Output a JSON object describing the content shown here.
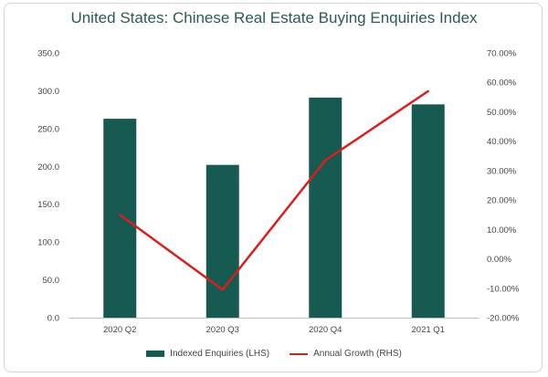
{
  "chart_data": {
    "type": "bar",
    "title": "United States: Chinese Real Estate Buying Enquiries Index",
    "categories": [
      "2020 Q2",
      "2020 Q3",
      "2020 Q4",
      "2021 Q1"
    ],
    "series": [
      {
        "name": "Indexed Enquiries (LHS)",
        "type": "bar",
        "axis": "left",
        "values": [
          263,
          202,
          291,
          282
        ]
      },
      {
        "name": "Annual Growth (RHS)",
        "type": "line",
        "axis": "right",
        "values": [
          0.15,
          -0.105,
          0.335,
          0.57
        ]
      }
    ],
    "left_axis": {
      "ylim": [
        0,
        350
      ],
      "ticks": [
        "0.0",
        "50.0",
        "100.0",
        "150.0",
        "200.0",
        "250.0",
        "300.0",
        "350.0"
      ]
    },
    "right_axis": {
      "ylim": [
        -0.2,
        0.7
      ],
      "ticks": [
        "-20.00%",
        "-10.00%",
        "0.00%",
        "10.00%",
        "20.00%",
        "30.00%",
        "40.00%",
        "50.00%",
        "60.00%",
        "70.00%"
      ]
    },
    "grid": false,
    "legend_position": "bottom",
    "colors": {
      "bars": "#165a52",
      "line": "#d81e1e",
      "title": "#2b5a55"
    }
  }
}
